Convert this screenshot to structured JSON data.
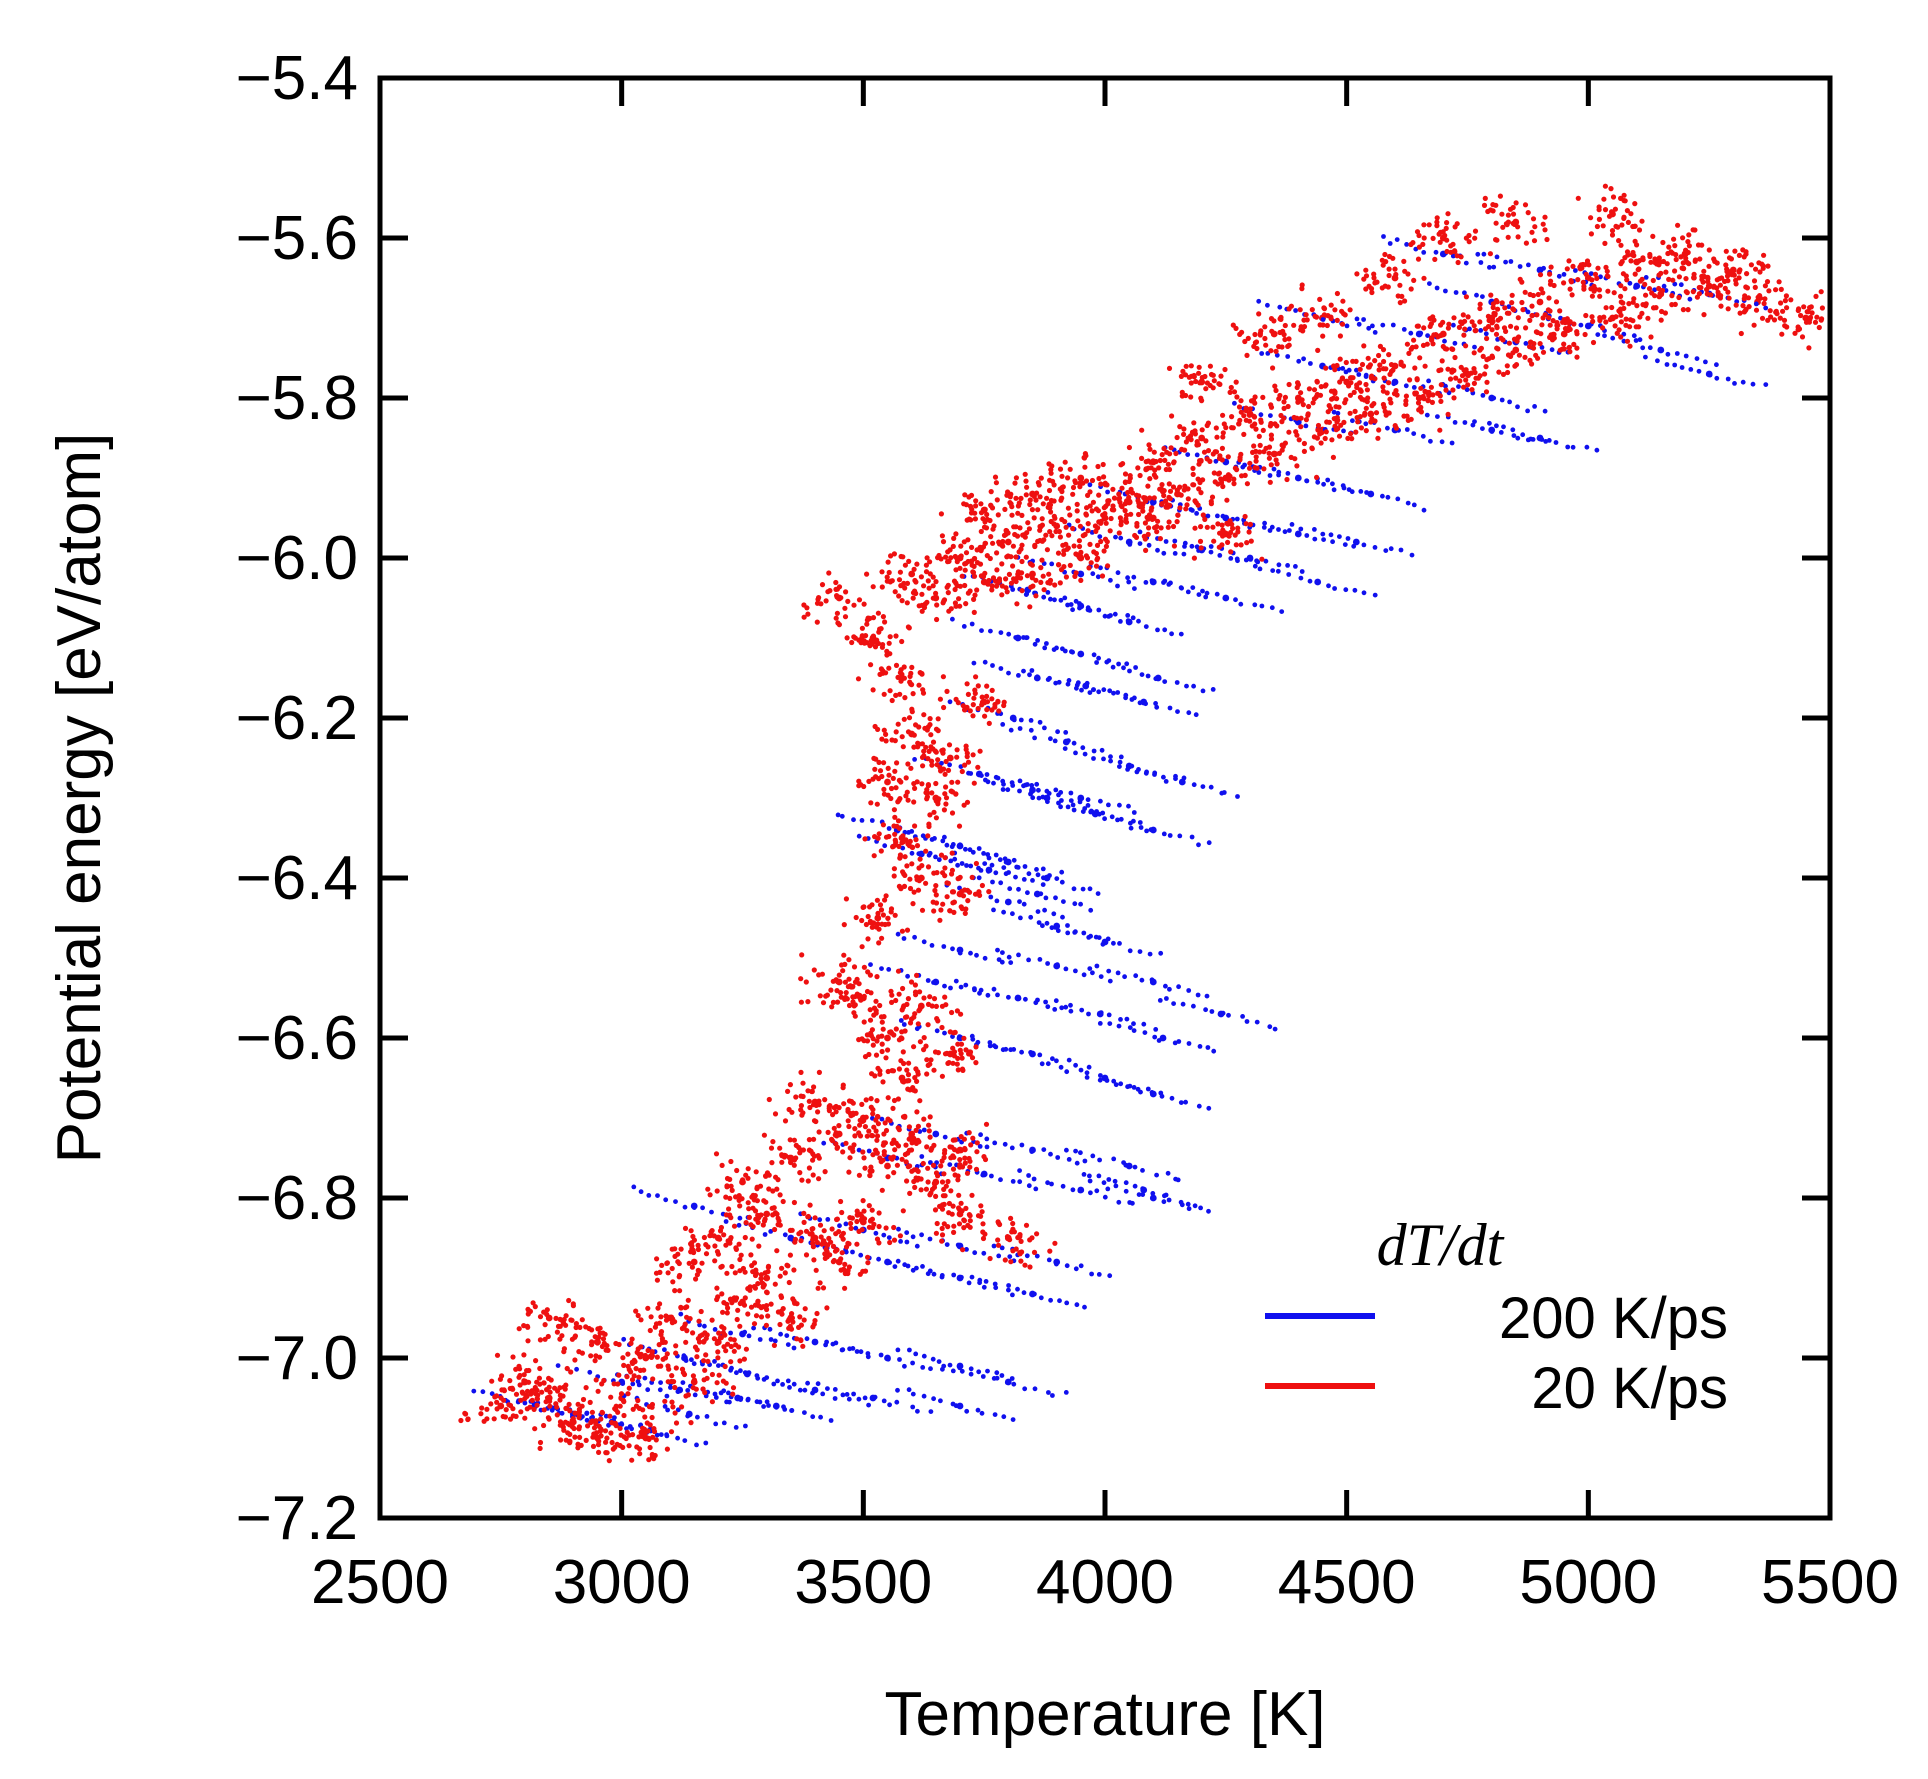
{
  "chart_data": {
    "type": "scatter",
    "title": "",
    "xlabel": "Temperature [K]",
    "ylabel": "Potential energy [eV/atom]",
    "xlim": [
      2500,
      5500
    ],
    "ylim": [
      -7.2,
      -5.4
    ],
    "xticks": [
      "2500",
      "3000",
      "3500",
      "4000",
      "4500",
      "5000",
      "5500"
    ],
    "yticks": [
      "−5.4",
      "−5.6",
      "−5.8",
      "−6.0",
      "−6.2",
      "−6.4",
      "−6.6",
      "−6.8",
      "−7.0",
      "−7.2"
    ],
    "grid": false,
    "legend": {
      "title": "dT/dt",
      "position": "bottom-right"
    },
    "series": [
      {
        "name": "200 K/ps",
        "color": "#1010ee",
        "style": "short sloped streaks of points (heating ramps)",
        "points": [
          [
            2820,
            -7.06
          ],
          [
            2900,
            -7.07
          ],
          [
            2980,
            -7.08
          ],
          [
            3060,
            -7.09
          ],
          [
            3140,
            -7.07
          ],
          [
            3000,
            -7.03
          ],
          [
            3120,
            -7.04
          ],
          [
            3240,
            -7.05
          ],
          [
            3320,
            -7.06
          ],
          [
            3130,
            -7.0
          ],
          [
            3260,
            -7.02
          ],
          [
            3400,
            -7.04
          ],
          [
            3520,
            -7.05
          ],
          [
            3700,
            -7.06
          ],
          [
            3250,
            -6.97
          ],
          [
            3400,
            -6.98
          ],
          [
            3550,
            -7.0
          ],
          [
            3700,
            -7.01
          ],
          [
            3800,
            -7.03
          ],
          [
            3150,
            -6.81
          ],
          [
            3350,
            -6.85
          ],
          [
            3550,
            -6.88
          ],
          [
            3700,
            -6.9
          ],
          [
            3850,
            -6.92
          ],
          [
            3500,
            -6.84
          ],
          [
            3700,
            -6.86
          ],
          [
            3900,
            -6.88
          ],
          [
            4080,
            -6.79
          ],
          [
            3550,
            -6.75
          ],
          [
            3750,
            -6.77
          ],
          [
            3950,
            -6.79
          ],
          [
            4100,
            -6.8
          ],
          [
            3650,
            -6.72
          ],
          [
            3850,
            -6.74
          ],
          [
            4050,
            -6.76
          ],
          [
            3700,
            -6.6
          ],
          [
            3850,
            -6.62
          ],
          [
            4000,
            -6.65
          ],
          [
            4100,
            -6.67
          ],
          [
            3650,
            -6.53
          ],
          [
            3820,
            -6.55
          ],
          [
            3990,
            -6.57
          ],
          [
            4120,
            -6.6
          ],
          [
            3700,
            -6.49
          ],
          [
            3900,
            -6.51
          ],
          [
            4100,
            -6.53
          ],
          [
            4240,
            -6.57
          ],
          [
            3800,
            -6.43
          ],
          [
            3900,
            -6.46
          ],
          [
            4000,
            -6.48
          ],
          [
            3570,
            -6.34
          ],
          [
            3700,
            -6.36
          ],
          [
            3800,
            -6.38
          ],
          [
            3880,
            -6.4
          ],
          [
            3620,
            -6.37
          ],
          [
            3760,
            -6.39
          ],
          [
            3860,
            -6.42
          ],
          [
            3880,
            -6.3
          ],
          [
            3980,
            -6.32
          ],
          [
            4100,
            -6.34
          ],
          [
            3740,
            -6.27
          ],
          [
            3850,
            -6.29
          ],
          [
            3950,
            -6.3
          ],
          [
            3810,
            -6.2
          ],
          [
            3920,
            -6.23
          ],
          [
            4050,
            -6.26
          ],
          [
            4160,
            -6.28
          ],
          [
            3860,
            -6.15
          ],
          [
            3960,
            -6.16
          ],
          [
            4080,
            -6.18
          ],
          [
            3820,
            -6.1
          ],
          [
            3950,
            -6.12
          ],
          [
            4110,
            -6.15
          ],
          [
            3840,
            -6.04
          ],
          [
            3950,
            -6.06
          ],
          [
            4050,
            -6.08
          ],
          [
            3950,
            -6.02
          ],
          [
            4100,
            -6.03
          ],
          [
            4250,
            -6.05
          ],
          [
            4050,
            -5.98
          ],
          [
            4200,
            -5.99
          ],
          [
            4300,
            -6.0
          ],
          [
            4440,
            -6.03
          ],
          [
            4100,
            -5.93
          ],
          [
            4250,
            -5.95
          ],
          [
            4400,
            -5.97
          ],
          [
            4520,
            -5.98
          ],
          [
            4250,
            -5.88
          ],
          [
            4400,
            -5.9
          ],
          [
            4550,
            -5.92
          ],
          [
            4400,
            -5.83
          ],
          [
            4600,
            -5.84
          ],
          [
            4800,
            -5.84
          ],
          [
            4900,
            -5.85
          ],
          [
            4450,
            -5.76
          ],
          [
            4600,
            -5.78
          ],
          [
            4800,
            -5.8
          ],
          [
            4450,
            -5.7
          ],
          [
            4650,
            -5.72
          ],
          [
            4850,
            -5.73
          ],
          [
            4700,
            -5.62
          ],
          [
            4900,
            -5.64
          ],
          [
            5100,
            -5.66
          ],
          [
            5250,
            -5.67
          ],
          [
            4800,
            -5.68
          ],
          [
            5000,
            -5.71
          ],
          [
            5150,
            -5.74
          ],
          [
            5250,
            -5.77
          ]
        ]
      },
      {
        "name": "20 K/ps",
        "color": "#ee1010",
        "style": "dense cloud of points",
        "points": [
          [
            2750,
            -7.06
          ],
          [
            2800,
            -7.03
          ],
          [
            2850,
            -7.05
          ],
          [
            2900,
            -7.08
          ],
          [
            2950,
            -7.1
          ],
          [
            3000,
            -7.05
          ],
          [
            3050,
            -7.1
          ],
          [
            2850,
            -6.95
          ],
          [
            2950,
            -6.98
          ],
          [
            3050,
            -7.0
          ],
          [
            3100,
            -6.95
          ],
          [
            3150,
            -7.03
          ],
          [
            3200,
            -6.98
          ],
          [
            3250,
            -6.93
          ],
          [
            3300,
            -6.9
          ],
          [
            3350,
            -6.95
          ],
          [
            3150,
            -6.88
          ],
          [
            3200,
            -6.85
          ],
          [
            3300,
            -6.82
          ],
          [
            3400,
            -6.85
          ],
          [
            3450,
            -6.88
          ],
          [
            3500,
            -6.83
          ],
          [
            3250,
            -6.78
          ],
          [
            3350,
            -6.75
          ],
          [
            3450,
            -6.72
          ],
          [
            3550,
            -6.76
          ],
          [
            3650,
            -6.78
          ],
          [
            3700,
            -6.82
          ],
          [
            3800,
            -6.85
          ],
          [
            3400,
            -6.68
          ],
          [
            3500,
            -6.7
          ],
          [
            3600,
            -6.72
          ],
          [
            3700,
            -6.74
          ],
          [
            3500,
            -6.55
          ],
          [
            3550,
            -6.6
          ],
          [
            3620,
            -6.56
          ],
          [
            3680,
            -6.62
          ],
          [
            3580,
            -6.65
          ],
          [
            3450,
            -6.53
          ],
          [
            3530,
            -6.45
          ],
          [
            3620,
            -6.4
          ],
          [
            3700,
            -6.42
          ],
          [
            3580,
            -6.35
          ],
          [
            3650,
            -6.3
          ],
          [
            3550,
            -6.28
          ],
          [
            3600,
            -6.22
          ],
          [
            3680,
            -6.25
          ],
          [
            3750,
            -6.18
          ],
          [
            3580,
            -6.15
          ],
          [
            3520,
            -6.1
          ],
          [
            3450,
            -6.05
          ],
          [
            3600,
            -6.02
          ],
          [
            3650,
            -6.05
          ],
          [
            3700,
            -6.0
          ],
          [
            3750,
            -6.03
          ],
          [
            3800,
            -5.98
          ],
          [
            3850,
            -6.02
          ],
          [
            3900,
            -5.96
          ],
          [
            3950,
            -6.0
          ],
          [
            4000,
            -5.95
          ],
          [
            3750,
            -5.94
          ],
          [
            3850,
            -5.92
          ],
          [
            3950,
            -5.9
          ],
          [
            4050,
            -5.93
          ],
          [
            4100,
            -5.88
          ],
          [
            4150,
            -5.92
          ],
          [
            4200,
            -5.85
          ],
          [
            4250,
            -5.9
          ],
          [
            4300,
            -5.82
          ],
          [
            4350,
            -5.87
          ],
          [
            4400,
            -5.8
          ],
          [
            4450,
            -5.84
          ],
          [
            4500,
            -5.78
          ],
          [
            4550,
            -5.82
          ],
          [
            4600,
            -5.76
          ],
          [
            4650,
            -5.8
          ],
          [
            4700,
            -5.72
          ],
          [
            4750,
            -5.77
          ],
          [
            4800,
            -5.7
          ],
          [
            4850,
            -5.74
          ],
          [
            4900,
            -5.68
          ],
          [
            4950,
            -5.72
          ],
          [
            5000,
            -5.65
          ],
          [
            5050,
            -5.7
          ],
          [
            5100,
            -5.63
          ],
          [
            5150,
            -5.67
          ],
          [
            5200,
            -5.62
          ],
          [
            5250,
            -5.66
          ],
          [
            5300,
            -5.64
          ],
          [
            5350,
            -5.68
          ],
          [
            5450,
            -5.7
          ],
          [
            4600,
            -5.65
          ],
          [
            4700,
            -5.6
          ],
          [
            4850,
            -5.58
          ],
          [
            5050,
            -5.57
          ],
          [
            4200,
            -5.78
          ],
          [
            4350,
            -5.72
          ],
          [
            4450,
            -5.7
          ],
          [
            4100,
            -5.95
          ],
          [
            4250,
            -5.97
          ]
        ]
      }
    ]
  }
}
